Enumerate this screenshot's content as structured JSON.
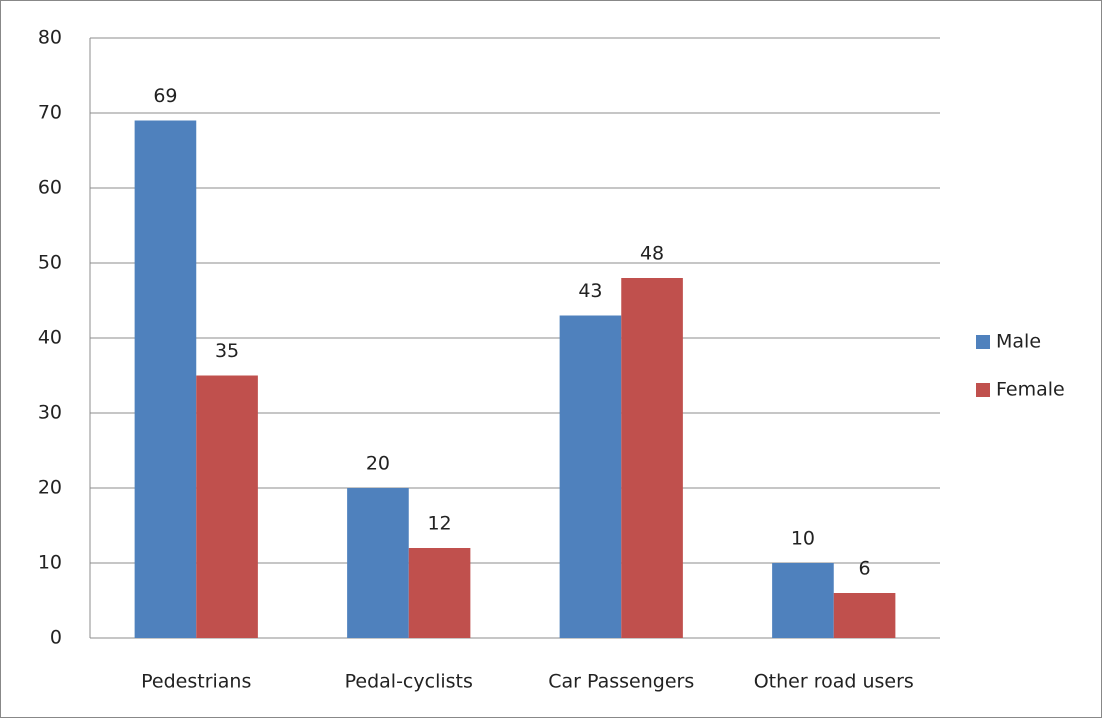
{
  "chart_data": {
    "type": "bar",
    "categories": [
      "Pedestrians",
      "Pedal-cyclists",
      "Car Passengers",
      "Other road users"
    ],
    "series": [
      {
        "name": "Male",
        "color": "#4f81bd",
        "values": [
          69,
          20,
          43,
          10
        ]
      },
      {
        "name": "Female",
        "color": "#c0504d",
        "values": [
          35,
          12,
          48,
          6
        ]
      }
    ],
    "ylim": [
      0,
      80
    ],
    "yticks": [
      0,
      10,
      20,
      30,
      40,
      50,
      60,
      70,
      80
    ],
    "grid": true,
    "legend": "right"
  }
}
